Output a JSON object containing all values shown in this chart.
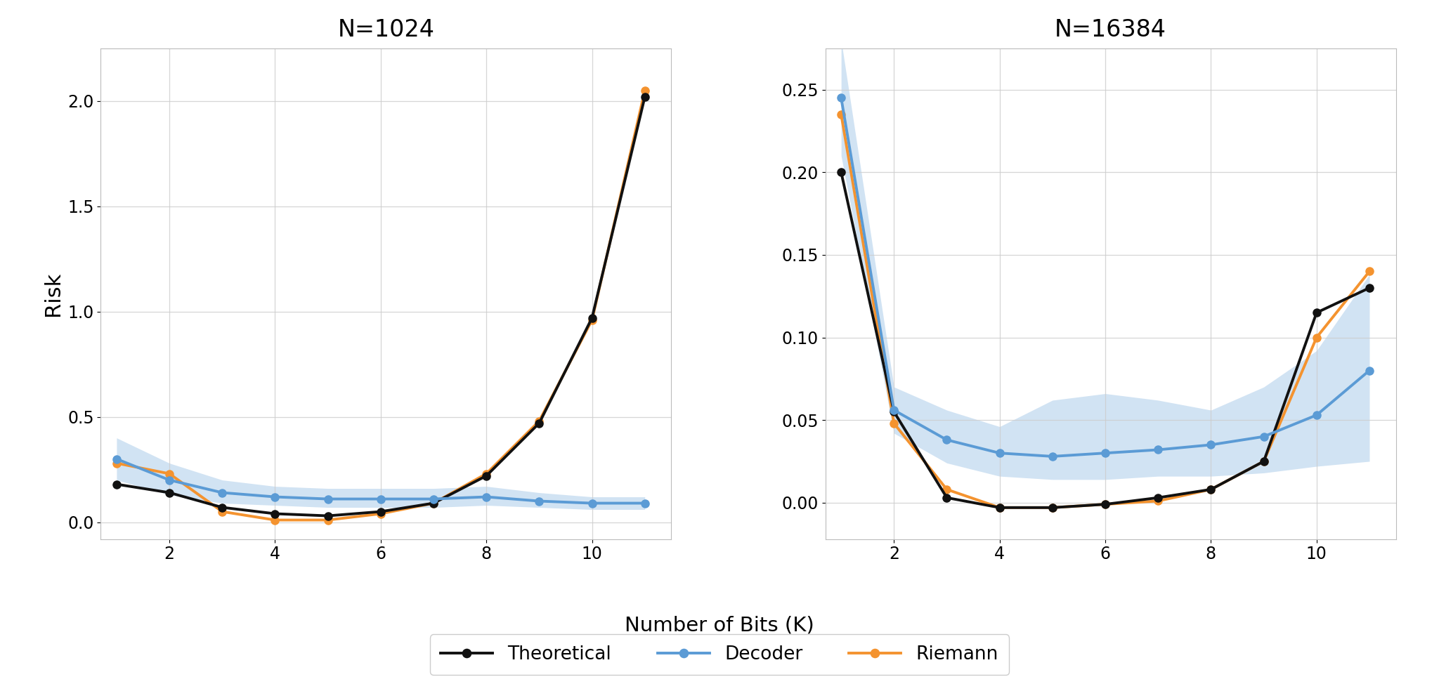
{
  "title1": "N=1024",
  "title2": "N=16384",
  "xlabel": "Number of Bits (K)",
  "ylabel": "Risk",
  "x": [
    1,
    2,
    3,
    4,
    5,
    6,
    7,
    8,
    9,
    10,
    11
  ],
  "n1024_theoretical": [
    0.18,
    0.14,
    0.07,
    0.04,
    0.03,
    0.05,
    0.09,
    0.22,
    0.47,
    0.97,
    2.02
  ],
  "n1024_decoder_mean": [
    0.3,
    0.2,
    0.14,
    0.12,
    0.11,
    0.11,
    0.11,
    0.12,
    0.1,
    0.09,
    0.09
  ],
  "n1024_decoder_lower": [
    0.2,
    0.13,
    0.09,
    0.08,
    0.07,
    0.07,
    0.07,
    0.08,
    0.07,
    0.06,
    0.06
  ],
  "n1024_decoder_upper": [
    0.4,
    0.28,
    0.2,
    0.17,
    0.16,
    0.16,
    0.16,
    0.17,
    0.14,
    0.12,
    0.12
  ],
  "n1024_riemann": [
    0.28,
    0.23,
    0.05,
    0.01,
    0.01,
    0.04,
    0.09,
    0.23,
    0.48,
    0.96,
    2.05
  ],
  "n16384_theoretical": [
    0.2,
    0.055,
    0.003,
    -0.003,
    -0.003,
    -0.001,
    0.003,
    0.008,
    0.025,
    0.115,
    0.13
  ],
  "n16384_decoder_mean": [
    0.245,
    0.056,
    0.038,
    0.03,
    0.028,
    0.03,
    0.032,
    0.035,
    0.04,
    0.053,
    0.08
  ],
  "n16384_decoder_lower": [
    0.21,
    0.042,
    0.024,
    0.016,
    0.014,
    0.014,
    0.016,
    0.016,
    0.018,
    0.022,
    0.025
  ],
  "n16384_decoder_upper": [
    0.28,
    0.07,
    0.056,
    0.046,
    0.062,
    0.066,
    0.062,
    0.056,
    0.07,
    0.092,
    0.138
  ],
  "n16384_riemann": [
    0.235,
    0.048,
    0.008,
    -0.003,
    -0.003,
    -0.001,
    0.001,
    0.008,
    0.025,
    0.1,
    0.14
  ],
  "color_theoretical": "#111111",
  "color_decoder": "#5b9bd5",
  "color_riemann": "#f4932f",
  "color_decoder_fill": "#5b9bd5",
  "background_color": "#ffffff",
  "grid_color": "#cccccc",
  "n1024_ylim": [
    -0.08,
    2.25
  ],
  "n1024_yticks": [
    0.0,
    0.5,
    1.0,
    1.5,
    2.0
  ],
  "n16384_ylim": [
    -0.022,
    0.275
  ],
  "n16384_yticks": [
    0.0,
    0.05,
    0.1,
    0.15,
    0.2,
    0.25
  ],
  "xlim": [
    0.7,
    11.5
  ],
  "xticks": [
    2,
    4,
    6,
    8,
    10
  ]
}
